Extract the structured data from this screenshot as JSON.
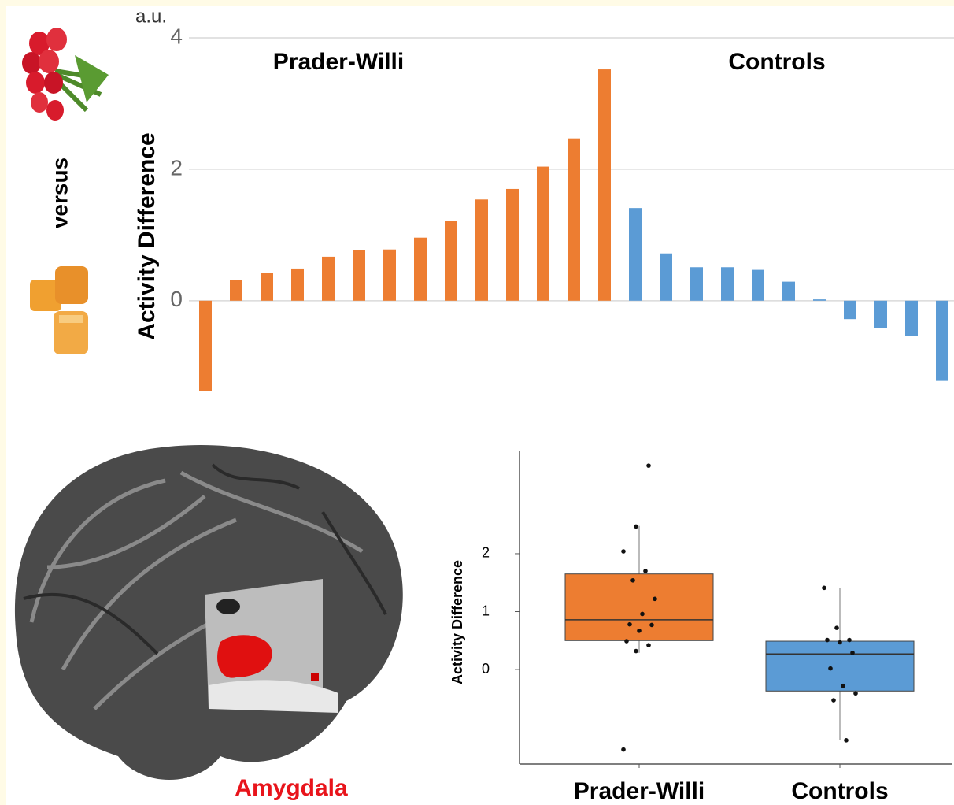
{
  "chart_data": [
    {
      "type": "bar",
      "y_label": "Activity Difference",
      "y_unit": "a.u.",
      "series": [
        {
          "name": "Prader-Willi",
          "color": "#ed7d31",
          "values": [
            -1.38,
            0.32,
            0.42,
            0.49,
            0.67,
            0.77,
            0.78,
            0.96,
            1.22,
            1.54,
            1.7,
            2.04,
            2.47,
            3.52
          ]
        },
        {
          "name": "Controls",
          "color": "#5b9bd5",
          "values": [
            1.41,
            0.72,
            0.51,
            0.51,
            0.47,
            0.29,
            0.02,
            -0.28,
            -0.41,
            -0.53,
            -1.22
          ]
        }
      ],
      "ylim": [
        -1.5,
        4
      ],
      "yticks": [
        0,
        2,
        4
      ],
      "grid": true
    },
    {
      "type": "box",
      "y_label": "Activity Difference",
      "categories": [
        "Prader-Willi",
        "Controls"
      ],
      "colors": [
        "#ed7d31",
        "#5b9bd5"
      ],
      "boxes": [
        {
          "whisker_low": 0.29,
          "q1": 0.5,
          "median": 0.86,
          "q3": 1.65,
          "whisker_high": 2.48
        },
        {
          "whisker_low": -1.22,
          "q1": -0.37,
          "median": 0.27,
          "q3": 0.49,
          "whisker_high": 1.41
        }
      ],
      "points": [
        [
          -1.38,
          0.32,
          0.42,
          0.49,
          0.67,
          0.77,
          0.78,
          0.96,
          1.22,
          1.54,
          1.7,
          2.04,
          2.47,
          3.52
        ],
        [
          1.41,
          0.72,
          0.51,
          0.51,
          0.47,
          0.29,
          0.02,
          -0.28,
          -0.41,
          -0.53,
          -1.22
        ]
      ],
      "ylim": [
        -1.63,
        3.78
      ],
      "yticks": [
        0,
        1,
        2
      ]
    }
  ],
  "labels": {
    "versus": "versus",
    "region": "Amygdala"
  }
}
